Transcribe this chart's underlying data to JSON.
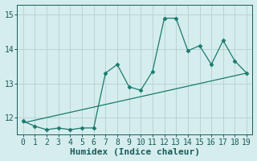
{
  "x": [
    0,
    1,
    2,
    3,
    4,
    5,
    6,
    7,
    8,
    9,
    10,
    11,
    12,
    13,
    14,
    15,
    16,
    17,
    18,
    19
  ],
  "y": [
    11.9,
    11.75,
    11.65,
    11.7,
    11.65,
    11.7,
    11.7,
    13.3,
    13.55,
    12.9,
    12.8,
    13.35,
    14.9,
    14.9,
    13.95,
    14.1,
    13.55,
    14.25,
    13.65,
    13.3
  ],
  "trend_x": [
    0,
    19
  ],
  "trend_y": [
    11.85,
    13.3
  ],
  "line_color": "#1a7a6e",
  "marker": "D",
  "markersize": 2.5,
  "xlabel": "Humidex (Indice chaleur)",
  "xlim": [
    -0.5,
    19.5
  ],
  "ylim": [
    11.5,
    15.3
  ],
  "yticks": [
    12,
    13,
    14,
    15
  ],
  "xticks": [
    0,
    1,
    2,
    3,
    4,
    5,
    6,
    7,
    8,
    9,
    10,
    11,
    12,
    13,
    14,
    15,
    16,
    17,
    18,
    19
  ],
  "bg_color": "#d5eded",
  "grid_color": "#b8d4d4",
  "font_color": "#1a5a5a",
  "tick_fontsize": 7,
  "xlabel_fontsize": 8
}
